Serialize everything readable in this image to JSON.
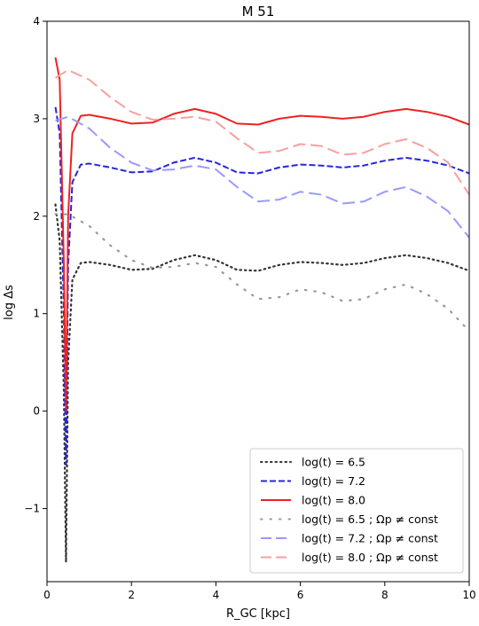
{
  "chart_data": {
    "type": "line",
    "title": "M 51",
    "xlabel": "R_GC [kpc]",
    "ylabel": "log Δs",
    "xlim": [
      0,
      10
    ],
    "ylim": [
      -1.75,
      4
    ],
    "xticks": [
      0,
      2,
      4,
      6,
      8,
      10
    ],
    "yticks": [
      -1,
      0,
      1,
      2,
      3,
      4
    ],
    "xtick_labels": [
      "0",
      "2",
      "4",
      "6",
      "8",
      "10"
    ],
    "ytick_labels": [
      "−1",
      "0",
      "1",
      "2",
      "3",
      "4"
    ],
    "grid": false,
    "legend_position": "lower-right",
    "series": [
      {
        "name": "log(t) = 6.5",
        "label_text": "log(t) = 6.5",
        "color": "#333333",
        "style": "dotted",
        "x": [
          0.2,
          0.3,
          0.4,
          0.45,
          0.5,
          0.6,
          0.8,
          1.0,
          1.5,
          2.0,
          2.5,
          3.0,
          3.5,
          4.0,
          4.5,
          5.0,
          5.5,
          6.0,
          6.5,
          7.0,
          7.5,
          8.0,
          8.5,
          9.0,
          9.5,
          10.0
        ],
        "y": [
          2.12,
          1.75,
          0.2,
          -1.55,
          0.5,
          1.35,
          1.52,
          1.53,
          1.5,
          1.45,
          1.46,
          1.55,
          1.6,
          1.55,
          1.45,
          1.44,
          1.5,
          1.53,
          1.52,
          1.5,
          1.52,
          1.57,
          1.6,
          1.57,
          1.52,
          1.44
        ]
      },
      {
        "name": "log(t) = 7.2",
        "label_text": "log(t) = 7.2",
        "color": "#2626dd",
        "style": "dashed",
        "x": [
          0.2,
          0.3,
          0.4,
          0.45,
          0.5,
          0.6,
          0.8,
          1.0,
          1.5,
          2.0,
          2.5,
          3.0,
          3.5,
          4.0,
          4.5,
          5.0,
          5.5,
          6.0,
          6.5,
          7.0,
          7.5,
          8.0,
          8.5,
          9.0,
          9.5,
          10.0
        ],
        "y": [
          3.12,
          2.85,
          1.0,
          -0.55,
          1.5,
          2.35,
          2.53,
          2.54,
          2.5,
          2.45,
          2.46,
          2.55,
          2.6,
          2.55,
          2.45,
          2.44,
          2.5,
          2.53,
          2.52,
          2.5,
          2.52,
          2.57,
          2.6,
          2.57,
          2.52,
          2.44
        ]
      },
      {
        "name": "log(t) = 8.0",
        "label_text": "log(t) = 8.0",
        "color": "#ee2222",
        "style": "solid",
        "x": [
          0.2,
          0.3,
          0.4,
          0.45,
          0.5,
          0.6,
          0.8,
          1.0,
          1.5,
          2.0,
          2.5,
          3.0,
          3.5,
          4.0,
          4.5,
          5.0,
          5.5,
          6.0,
          6.5,
          7.0,
          7.5,
          8.0,
          8.5,
          9.0,
          9.5,
          10.0
        ],
        "y": [
          3.63,
          3.4,
          1.5,
          0.0,
          2.0,
          2.85,
          3.03,
          3.04,
          3.0,
          2.95,
          2.96,
          3.05,
          3.1,
          3.05,
          2.95,
          2.94,
          3.0,
          3.03,
          3.02,
          3.0,
          3.02,
          3.07,
          3.1,
          3.07,
          3.02,
          2.94
        ]
      },
      {
        "name": "log(t) = 6.5 ; Ω_p ≠ const",
        "label_text": "log(t) = 6.5 ; Ωp ≠ const",
        "color": "#999999",
        "style": "loosedot",
        "x": [
          0.2,
          0.5,
          1.0,
          1.5,
          2.0,
          2.5,
          3.0,
          3.5,
          4.0,
          4.5,
          5.0,
          5.5,
          6.0,
          6.5,
          7.0,
          7.5,
          8.0,
          8.5,
          9.0,
          9.5,
          10.0
        ],
        "y": [
          2.02,
          2.02,
          1.9,
          1.7,
          1.55,
          1.47,
          1.48,
          1.52,
          1.48,
          1.3,
          1.15,
          1.17,
          1.25,
          1.22,
          1.13,
          1.15,
          1.25,
          1.3,
          1.2,
          1.05,
          0.82
        ]
      },
      {
        "name": "log(t) = 7.2 ; Ω_p ≠ const",
        "label_text": "log(t) = 7.2 ; Ωp ≠ const",
        "color": "#9999ff",
        "style": "longdash",
        "x": [
          0.2,
          0.5,
          1.0,
          1.5,
          2.0,
          2.5,
          3.0,
          3.5,
          4.0,
          4.5,
          5.0,
          5.5,
          6.0,
          6.5,
          7.0,
          7.5,
          8.0,
          8.5,
          9.0,
          9.5,
          10.0
        ],
        "y": [
          2.98,
          3.02,
          2.9,
          2.7,
          2.55,
          2.47,
          2.48,
          2.52,
          2.48,
          2.3,
          2.15,
          2.17,
          2.25,
          2.22,
          2.13,
          2.15,
          2.25,
          2.3,
          2.2,
          2.05,
          1.78
        ]
      },
      {
        "name": "log(t) = 8.0 ; Ω_p ≠ const",
        "label_text": "log(t) = 8.0 ; Ωp ≠ const",
        "color": "#f7a0a0",
        "style": "longdash",
        "x": [
          0.2,
          0.5,
          1.0,
          1.5,
          2.0,
          2.5,
          3.0,
          3.5,
          4.0,
          4.5,
          5.0,
          5.5,
          6.0,
          6.5,
          7.0,
          7.5,
          8.0,
          8.5,
          9.0,
          9.5,
          10.0
        ],
        "y": [
          3.42,
          3.5,
          3.4,
          3.22,
          3.07,
          2.99,
          3.0,
          3.02,
          2.97,
          2.8,
          2.65,
          2.67,
          2.74,
          2.72,
          2.63,
          2.65,
          2.74,
          2.79,
          2.7,
          2.55,
          2.22
        ]
      }
    ]
  }
}
